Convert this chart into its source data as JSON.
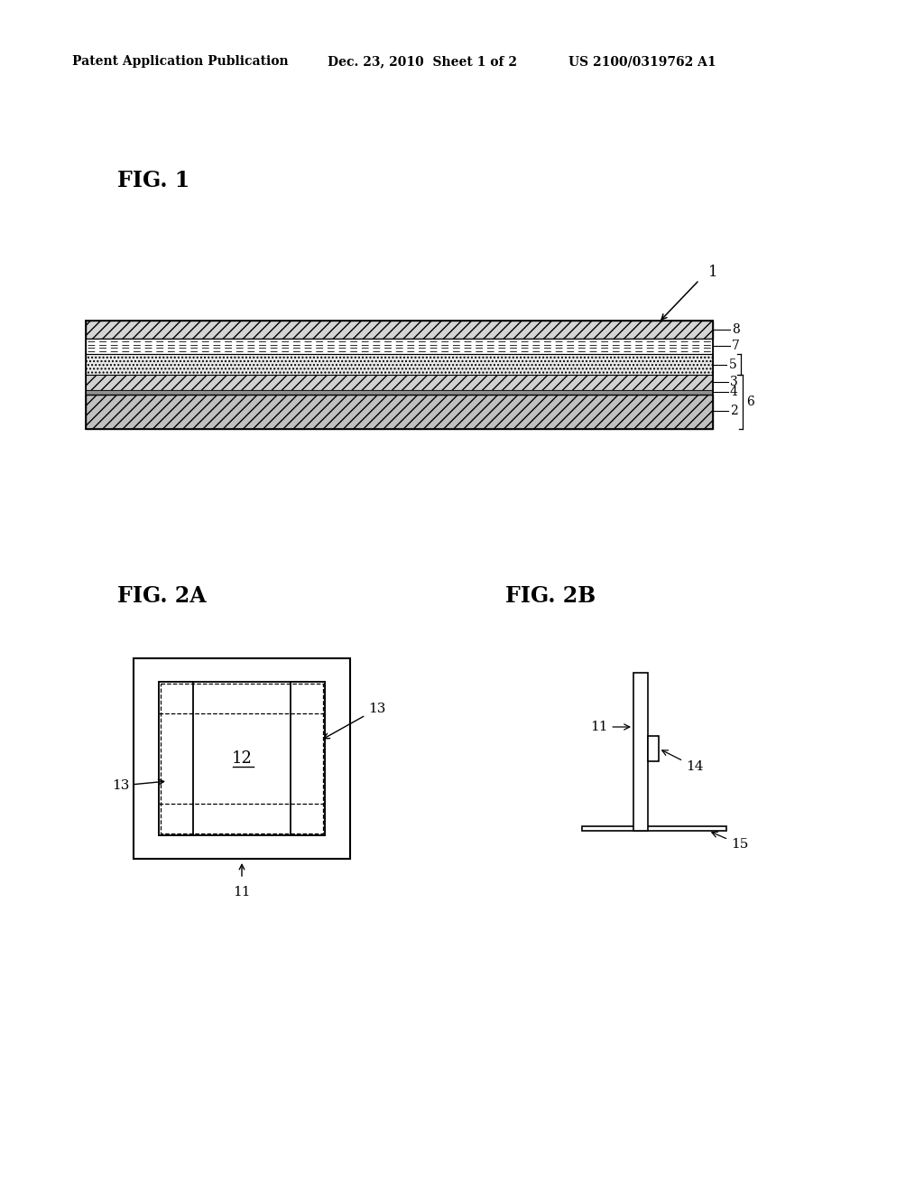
{
  "background_color": "#ffffff",
  "header_left": "Patent Application Publication",
  "header_mid": "Dec. 23, 2010  Sheet 1 of 2",
  "header_right": "US 2100/0319762 A1",
  "fig1_label": "FIG. 1",
  "fig2a_label": "FIG. 2A",
  "fig2b_label": "FIG. 2B"
}
